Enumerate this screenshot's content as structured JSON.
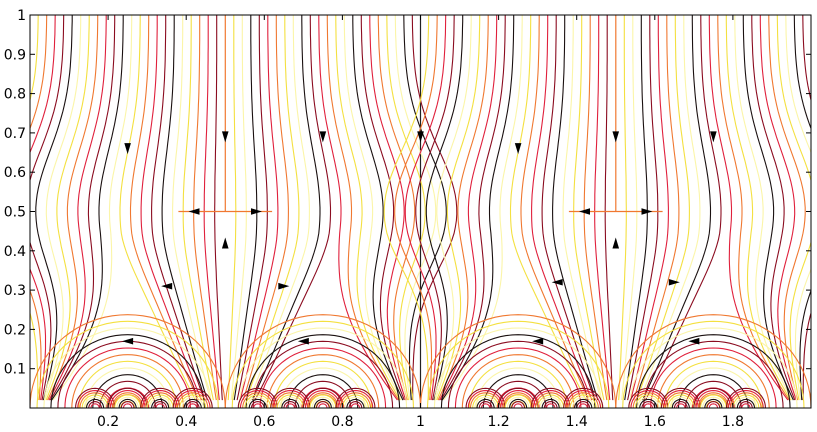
{
  "chart_data": {
    "type": "line",
    "title": "",
    "xlabel": "",
    "ylabel": "",
    "xlim": [
      0,
      2
    ],
    "ylim": [
      0,
      1
    ],
    "x_ticks": [
      "0.2",
      "0.4",
      "0.6",
      "0.8",
      "1",
      "1.2",
      "1.4",
      "1.6",
      "1.8"
    ],
    "y_ticks": [
      "0.1",
      "0.2",
      "0.3",
      "0.4",
      "0.5",
      "0.6",
      "0.7",
      "0.8",
      "0.9",
      "1"
    ],
    "grid": false,
    "legend": "none",
    "description_series": [
      {
        "name": "",
        "x": [
          0.5,
          0.5
        ],
        "y": [
          0.5,
          1.0
        ]
      },
      {
        "name": "",
        "x": [
          1.5,
          1.5
        ],
        "y": [
          0.5,
          1.0
        ]
      },
      {
        "name": "",
        "x": [
          1.0,
          1.0
        ],
        "y": [
          0.0,
          1.0
        ]
      }
    ],
    "saddle_points": [
      {
        "x": 0.5,
        "y": 0.5
      },
      {
        "x": 1.5,
        "y": 0.5
      }
    ],
    "arrows": [
      {
        "x": 0.25,
        "y": 0.66,
        "dir": "down"
      },
      {
        "x": 0.5,
        "y": 0.69,
        "dir": "down"
      },
      {
        "x": 0.75,
        "y": 0.69,
        "dir": "down"
      },
      {
        "x": 1.0,
        "y": 0.69,
        "dir": "down"
      },
      {
        "x": 1.25,
        "y": 0.66,
        "dir": "down"
      },
      {
        "x": 1.5,
        "y": 0.69,
        "dir": "down"
      },
      {
        "x": 1.75,
        "y": 0.69,
        "dir": "down"
      },
      {
        "x": 0.42,
        "y": 0.5,
        "dir": "left"
      },
      {
        "x": 0.58,
        "y": 0.5,
        "dir": "right"
      },
      {
        "x": 1.42,
        "y": 0.5,
        "dir": "left"
      },
      {
        "x": 1.58,
        "y": 0.5,
        "dir": "right"
      },
      {
        "x": 0.5,
        "y": 0.42,
        "dir": "up"
      },
      {
        "x": 1.5,
        "y": 0.42,
        "dir": "up"
      },
      {
        "x": 0.35,
        "y": 0.31,
        "dir": "left"
      },
      {
        "x": 0.65,
        "y": 0.31,
        "dir": "right"
      },
      {
        "x": 1.35,
        "y": 0.32,
        "dir": "left"
      },
      {
        "x": 1.65,
        "y": 0.32,
        "dir": "right"
      },
      {
        "x": 0.25,
        "y": 0.17,
        "dir": "left"
      },
      {
        "x": 0.7,
        "y": 0.17,
        "dir": "left"
      },
      {
        "x": 1.3,
        "y": 0.17,
        "dir": "left"
      },
      {
        "x": 1.7,
        "y": 0.17,
        "dir": "left"
      }
    ],
    "colors": {
      "black": "#1a1010",
      "dark_red": "#8b0c20",
      "red": "#e0203c",
      "orange": "#f07830",
      "yellow": "#f4e040",
      "pale_yellow": "#fbf5a8"
    }
  }
}
